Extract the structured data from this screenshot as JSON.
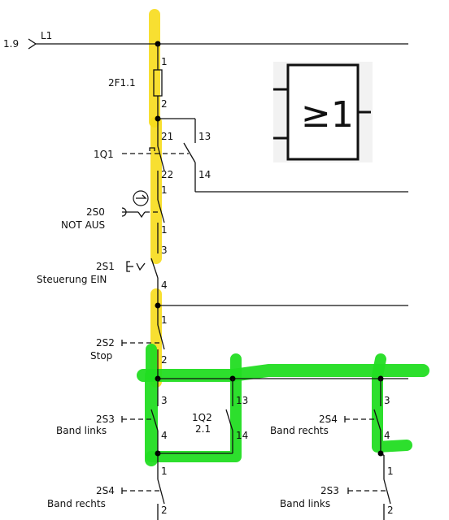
{
  "colors": {
    "highlight_yellow": "#f7dc1b",
    "highlight_green": "#22dd22",
    "line": "#111111"
  },
  "diagram": {
    "line_ref": "1.9",
    "line_name": "L1",
    "fuse": {
      "name": "2F1.1",
      "pin_top": "1",
      "pin_bottom": "2"
    },
    "switch_1q1": {
      "name": "1Q1",
      "pin_nc_top": "21",
      "pin_nc_bottom": "22",
      "pin_no_top": "13",
      "pin_no_bottom": "14"
    },
    "estop": {
      "name": "2S0",
      "desc": "NOT AUS",
      "pin_top": "1",
      "pin_mid": "1",
      "pin_bottom": "3"
    },
    "s1": {
      "name": "2S1",
      "desc": "Steuerung EIN",
      "pin_bottom": "4"
    },
    "s2": {
      "name": "2S2",
      "desc": "Stop",
      "pin_top": "1",
      "pin_bottom": "2"
    },
    "s3_left": {
      "name": "2S3",
      "desc": "Band links",
      "pin_top": "3",
      "pin_bottom": "4"
    },
    "q2": {
      "name": "1Q2",
      "ref": "2.1",
      "pin_top": "13",
      "pin_bottom": "14"
    },
    "s4_right": {
      "name": "2S4",
      "desc": "Band rechts",
      "pin_top": "3",
      "pin_bottom": "4"
    },
    "s4_left_bottom": {
      "name": "2S4",
      "desc": "Band rechts",
      "pin_top": "1",
      "pin_bottom": "2"
    },
    "s3_right_bottom": {
      "name": "2S3",
      "desc": "Band links",
      "pin_top": "1",
      "pin_bottom": "2"
    },
    "or_gate": {
      "symbol": "≥1"
    }
  }
}
